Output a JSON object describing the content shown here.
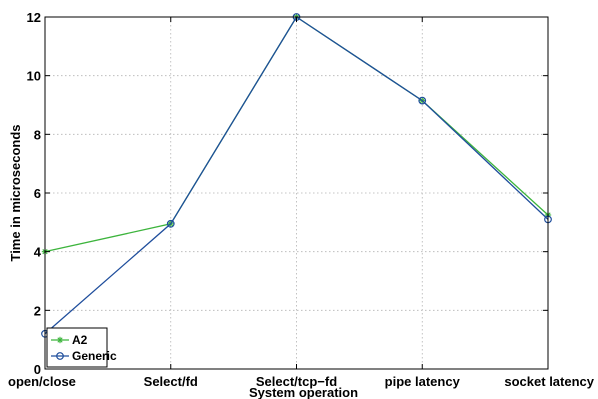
{
  "chart_data": {
    "type": "line",
    "title": "",
    "xlabel": "System operation",
    "ylabel": "Time in microseconds",
    "categories": [
      "open/close",
      "Select/fd",
      "Select/tcp−fd",
      "pipe latency",
      "socket latency"
    ],
    "ylim": [
      0,
      12
    ],
    "yticks": [
      0,
      2,
      4,
      6,
      8,
      10,
      12
    ],
    "grid": true,
    "legend_position": "bottom-left",
    "series": [
      {
        "name": "A2",
        "values": [
          4.0,
          4.95,
          12.0,
          9.15,
          5.25
        ],
        "color": "#3cb43c",
        "marker": "asterisk"
      },
      {
        "name": "Generic",
        "values": [
          1.2,
          4.95,
          12.0,
          9.15,
          5.1
        ],
        "color": "#1f4e9c",
        "marker": "circle"
      }
    ]
  }
}
